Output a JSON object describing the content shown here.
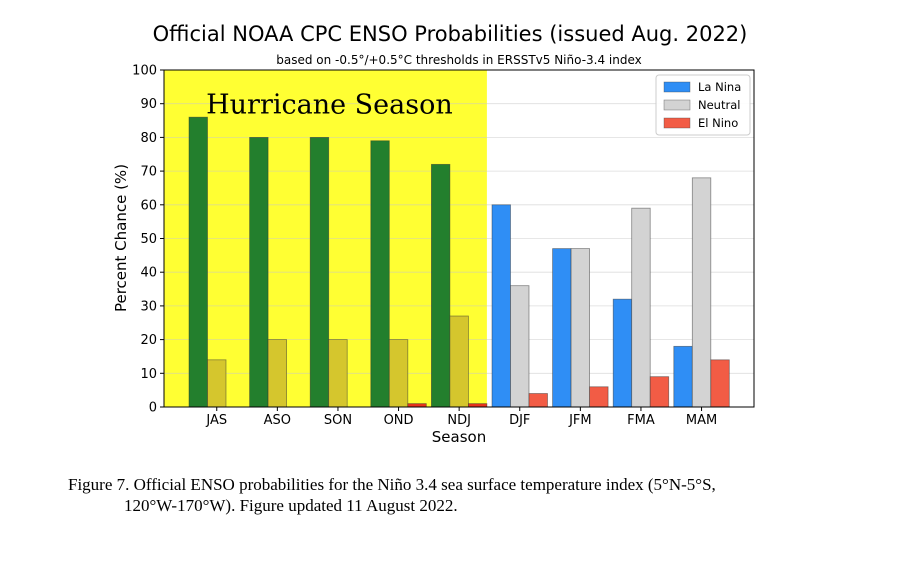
{
  "chart_data": {
    "type": "bar",
    "title": "Official NOAA CPC ENSO Probabilities (issued Aug. 2022)",
    "subtitle": "based on -0.5°/+0.5°C thresholds in ERSSTv5 Niño-3.4 index",
    "xlabel": "Season",
    "ylabel": "Percent Chance (%)",
    "ylim": [
      0,
      100
    ],
    "yticks": [
      "0",
      "10",
      "20",
      "30",
      "40",
      "50",
      "60",
      "70",
      "80",
      "90",
      "100"
    ],
    "grid": "horizontal",
    "legend_position": "top-right",
    "categories": [
      "JAS",
      "ASO",
      "SON",
      "OND",
      "NDJ",
      "DJF",
      "JFM",
      "FMA",
      "MAM"
    ],
    "series": [
      {
        "name": "La Nina",
        "values": [
          86,
          80,
          80,
          79,
          72,
          60,
          47,
          32,
          18
        ]
      },
      {
        "name": "Neutral",
        "values": [
          14,
          20,
          20,
          20,
          27,
          36,
          47,
          59,
          68
        ]
      },
      {
        "name": "El Nino",
        "values": [
          0,
          0,
          0,
          1,
          1,
          4,
          6,
          9,
          14
        ]
      }
    ],
    "colors": {
      "La Nina": "#2f8ef5",
      "Neutral": "#d3d3d3",
      "El Nino": "#f25c45",
      "La Nina (highlighted)": "#237f2d",
      "Neutral (highlighted)": "#d5c62d",
      "El Nino (highlighted)": "#e8331c",
      "highlight": "#ffff33"
    },
    "highlight": {
      "label": "Hurricane Season",
      "categories": [
        "JAS",
        "ASO",
        "SON",
        "OND",
        "NDJ"
      ]
    }
  },
  "caption": {
    "line1": "Figure 7. Official ENSO probabilities for the Niño 3.4 sea surface temperature index (5°N-5°S,",
    "line2": "120°W-170°W). Figure updated 11 August 2022."
  }
}
